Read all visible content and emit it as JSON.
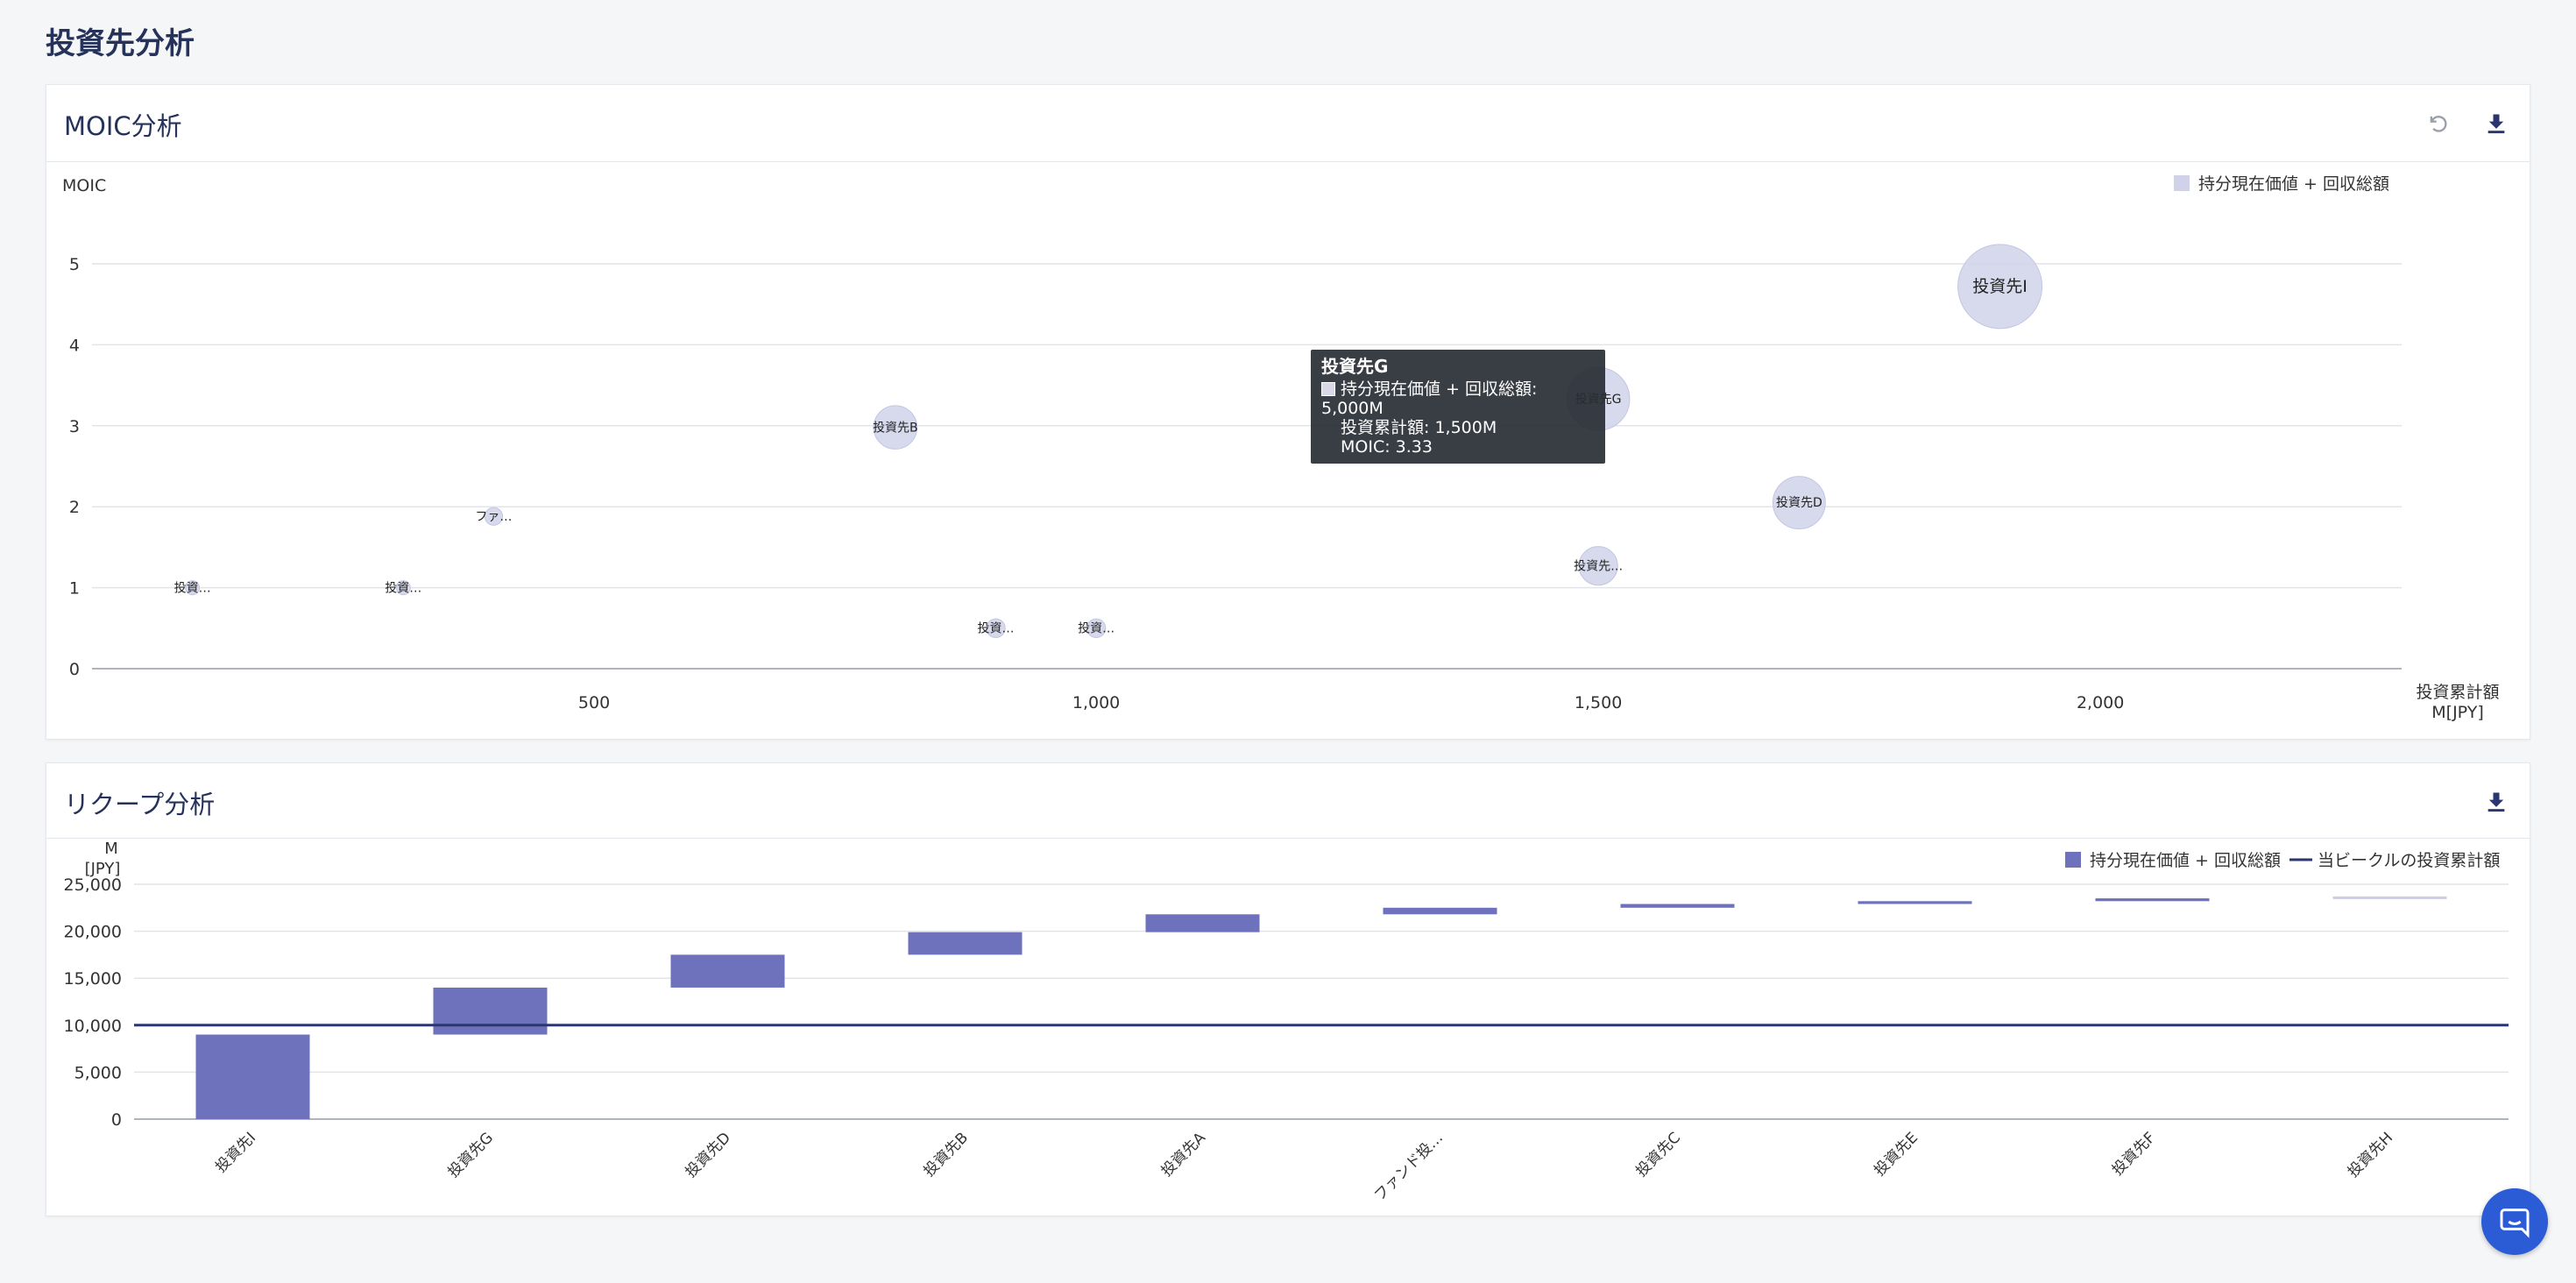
{
  "page": {
    "title": "投資先分析"
  },
  "moic": {
    "title": "MOIC分析",
    "icons": {
      "reset": "reset-icon",
      "download": "download-icon"
    },
    "chart_data": {
      "type": "scatter",
      "ylabel": "MOIC",
      "xlabel_line1": "投資累計額",
      "xlabel_line2": "M[JPY]",
      "xlim": [
        0,
        2300
      ],
      "ylim": [
        0,
        5
      ],
      "xticks": [
        500,
        1000,
        1500,
        2000
      ],
      "xtick_labels": [
        "500",
        "1,000",
        "1,500",
        "2,000"
      ],
      "yticks": [
        0,
        1,
        2,
        3,
        4,
        5
      ],
      "legend": [
        "持分現在価値 + 回収総額"
      ],
      "legend_position": "top-right",
      "color": "#d0d2ea",
      "points": [
        {
          "label": "投資…",
          "x": 100,
          "y": 1.0,
          "size": 60
        },
        {
          "label": "投資…",
          "x": 310,
          "y": 1.0,
          "size": 60
        },
        {
          "label": "ファ…",
          "x": 400,
          "y": 1.88,
          "size": 400
        },
        {
          "label": "投資先B",
          "x": 800,
          "y": 2.98,
          "size": 2400
        },
        {
          "label": "投資…",
          "x": 900,
          "y": 0.5,
          "size": 450
        },
        {
          "label": "投資…",
          "x": 1000,
          "y": 0.5,
          "size": 450
        },
        {
          "label": "投資先G",
          "x": 1500,
          "y": 3.33,
          "size": 5000
        },
        {
          "label": "投資先…",
          "x": 1500,
          "y": 1.27,
          "size": 1900
        },
        {
          "label": "投資先D",
          "x": 1700,
          "y": 2.05,
          "size": 3500
        },
        {
          "label": "投資先I",
          "x": 1900,
          "y": 4.72,
          "size": 9000
        }
      ]
    },
    "tooltip": {
      "title": "投資先G",
      "line1": "持分現在価値 + 回収総額: 5,000M",
      "line2": "投資累計額: 1,500M",
      "line3": "MOIC: 3.33"
    }
  },
  "recoup": {
    "title": "リクープ分析",
    "icons": {
      "download": "download-icon"
    },
    "chart_data": {
      "type": "bar",
      "ylabel_line1": "M",
      "ylabel_line2": "[JPY]",
      "ylim": [
        0,
        25000
      ],
      "yticks": [
        0,
        5000,
        10000,
        15000,
        20000,
        25000
      ],
      "ytick_labels": [
        "0",
        "5,000",
        "10,000",
        "15,000",
        "20,000",
        "25,000"
      ],
      "categories": [
        "投資先I",
        "投資先G",
        "投資先D",
        "投資先B",
        "投資先A",
        "ファンド投…",
        "投資先C",
        "投資先E",
        "投資先F",
        "投資先H"
      ],
      "bars": [
        {
          "start": 0,
          "end": 9000
        },
        {
          "start": 9000,
          "end": 14000
        },
        {
          "start": 14000,
          "end": 17500
        },
        {
          "start": 17500,
          "end": 19900
        },
        {
          "start": 19900,
          "end": 21800
        },
        {
          "start": 21800,
          "end": 22500
        },
        {
          "start": 22500,
          "end": 22900
        },
        {
          "start": 22900,
          "end": 23200
        },
        {
          "start": 23200,
          "end": 23500
        },
        {
          "start": 23500,
          "end": 23700
        }
      ],
      "reference_line": 10000,
      "legend": [
        "持分現在価値 + 回収総額",
        "当ビークルの投資累計額"
      ],
      "legend_position": "top-right",
      "bar_color": "#6e72bd",
      "line_color": "#2b3670"
    }
  }
}
